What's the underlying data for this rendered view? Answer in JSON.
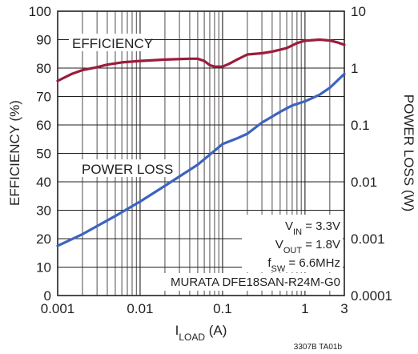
{
  "chart_data": {
    "type": "line",
    "xscale": "log",
    "xlim": [
      0.001,
      3
    ],
    "x_ticks": [
      "0.001",
      "0.01",
      "0.1",
      "1",
      "3"
    ],
    "xlabel": {
      "main": "I",
      "sub": "LOAD",
      "unit": " (A)"
    },
    "y_left": {
      "label": "EFFICIENCY (%)",
      "ylim": [
        0,
        100
      ],
      "ticks": [
        "0",
        "10",
        "20",
        "30",
        "40",
        "50",
        "60",
        "70",
        "80",
        "90",
        "100"
      ]
    },
    "y_right": {
      "label": "POWER LOSS (W)",
      "scale": "log",
      "ylim": [
        0.0001,
        10
      ],
      "ticks": [
        "0.0001",
        "0.001",
        "0.01",
        "0.1",
        "1",
        "10"
      ]
    },
    "grid": true,
    "series": [
      {
        "name": "EFFICIENCY",
        "axis": "left",
        "color": "#9b1c3c",
        "points": [
          [
            0.001,
            75.5
          ],
          [
            0.0015,
            78
          ],
          [
            0.002,
            79.3
          ],
          [
            0.003,
            80.3
          ],
          [
            0.004,
            81.2
          ],
          [
            0.006,
            82
          ],
          [
            0.01,
            82.5
          ],
          [
            0.02,
            83
          ],
          [
            0.04,
            83.3
          ],
          [
            0.05,
            83.3
          ],
          [
            0.06,
            82.5
          ],
          [
            0.07,
            81
          ],
          [
            0.08,
            80.5
          ],
          [
            0.1,
            80.5
          ],
          [
            0.12,
            81.5
          ],
          [
            0.15,
            83
          ],
          [
            0.2,
            84.8
          ],
          [
            0.3,
            85.2
          ],
          [
            0.4,
            85.8
          ],
          [
            0.6,
            87
          ],
          [
            0.8,
            88.8
          ],
          [
            1,
            89.6
          ],
          [
            1.5,
            90
          ],
          [
            2,
            89.7
          ],
          [
            2.5,
            89
          ],
          [
            3,
            88.2
          ]
        ]
      },
      {
        "name": "POWER LOSS",
        "axis": "right",
        "color": "#3d63c0",
        "points": [
          [
            0.001,
            0.00075
          ],
          [
            0.002,
            0.0012
          ],
          [
            0.005,
            0.0025
          ],
          [
            0.01,
            0.0045
          ],
          [
            0.02,
            0.0085
          ],
          [
            0.05,
            0.02
          ],
          [
            0.07,
            0.03
          ],
          [
            0.1,
            0.046
          ],
          [
            0.15,
            0.058
          ],
          [
            0.2,
            0.07
          ],
          [
            0.3,
            0.11
          ],
          [
            0.5,
            0.17
          ],
          [
            0.7,
            0.22
          ],
          [
            1,
            0.26
          ],
          [
            1.5,
            0.34
          ],
          [
            2,
            0.45
          ],
          [
            3,
            0.79
          ]
        ]
      }
    ],
    "annotations": {
      "efficiency_label": "EFFICIENCY",
      "power_loss_label": "POWER LOSS",
      "conditions": [
        {
          "main": "V",
          "sub": "IN",
          "rest": " = 3.3V"
        },
        {
          "main": "V",
          "sub": "OUT",
          "rest": " = 1.8V"
        },
        {
          "main": "f",
          "sub": "SW",
          "rest": " = 6.6MHz"
        }
      ],
      "part": "MURATA DFE18SAN-R24M-G0",
      "figure_id": "3307B TA01b"
    }
  }
}
